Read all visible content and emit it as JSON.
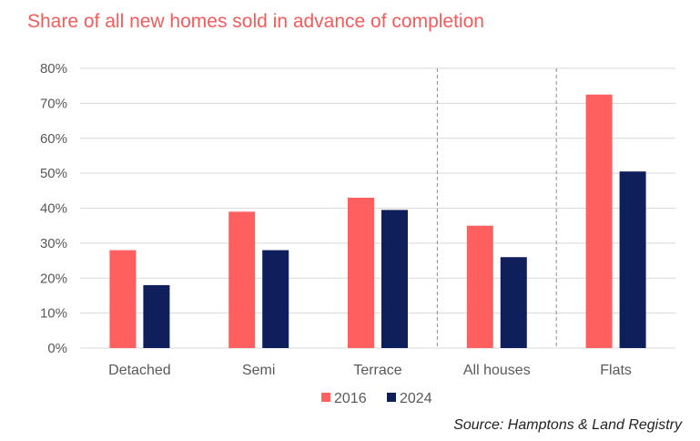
{
  "chart_data": {
    "type": "bar",
    "title": "Share of all new homes sold in advance of completion",
    "categories": [
      "Detached",
      "Semi",
      "Terrace",
      "All houses",
      "Flats"
    ],
    "series": [
      {
        "name": "2016",
        "color": "#ff5f5f",
        "values": [
          28,
          39,
          43,
          35,
          72.5
        ]
      },
      {
        "name": "2024",
        "color": "#0f1f5c",
        "values": [
          18,
          28,
          39.5,
          26,
          50.5
        ]
      }
    ],
    "ylim": [
      0,
      80
    ],
    "yticks": [
      "0%",
      "10%",
      "20%",
      "30%",
      "40%",
      "50%",
      "60%",
      "70%",
      "80%"
    ],
    "grid": true,
    "group_separators_after": [
      "Terrace",
      "All houses"
    ],
    "legend_position": "bottom-center",
    "source": "Source: Hamptons & Land Registry"
  },
  "colors": {
    "title": "#f45b5b",
    "grid": "#d9d9d9",
    "separator": "#8c8c8c",
    "axis_text": "#595959"
  }
}
